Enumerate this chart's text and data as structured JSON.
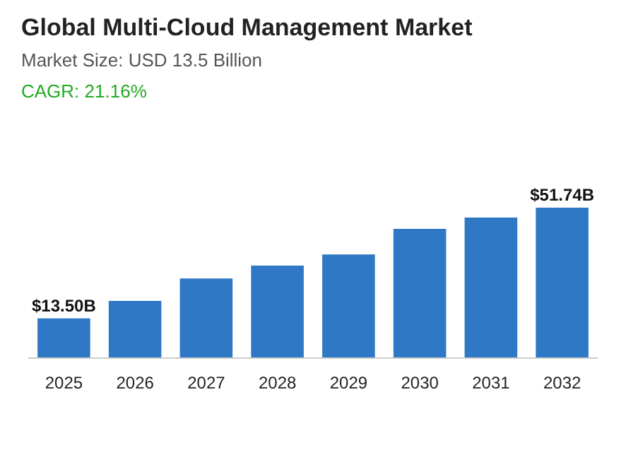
{
  "chart_data": {
    "type": "bar",
    "title": "Global Multi-Cloud Management Market",
    "subtitle": "Market Size: USD 13.5 Billion",
    "annotations": [
      "CAGR: 21.16%"
    ],
    "categories": [
      "2025",
      "2026",
      "2027",
      "2028",
      "2029",
      "2030",
      "2031",
      "2032"
    ],
    "values": [
      13.5,
      19.5,
      27.3,
      31.7,
      35.6,
      44.4,
      48.3,
      51.74
    ],
    "value_labels": [
      "$13.50B",
      null,
      null,
      null,
      null,
      null,
      null,
      "$51.74B"
    ],
    "color": "#2e78c5",
    "grid": false
  }
}
